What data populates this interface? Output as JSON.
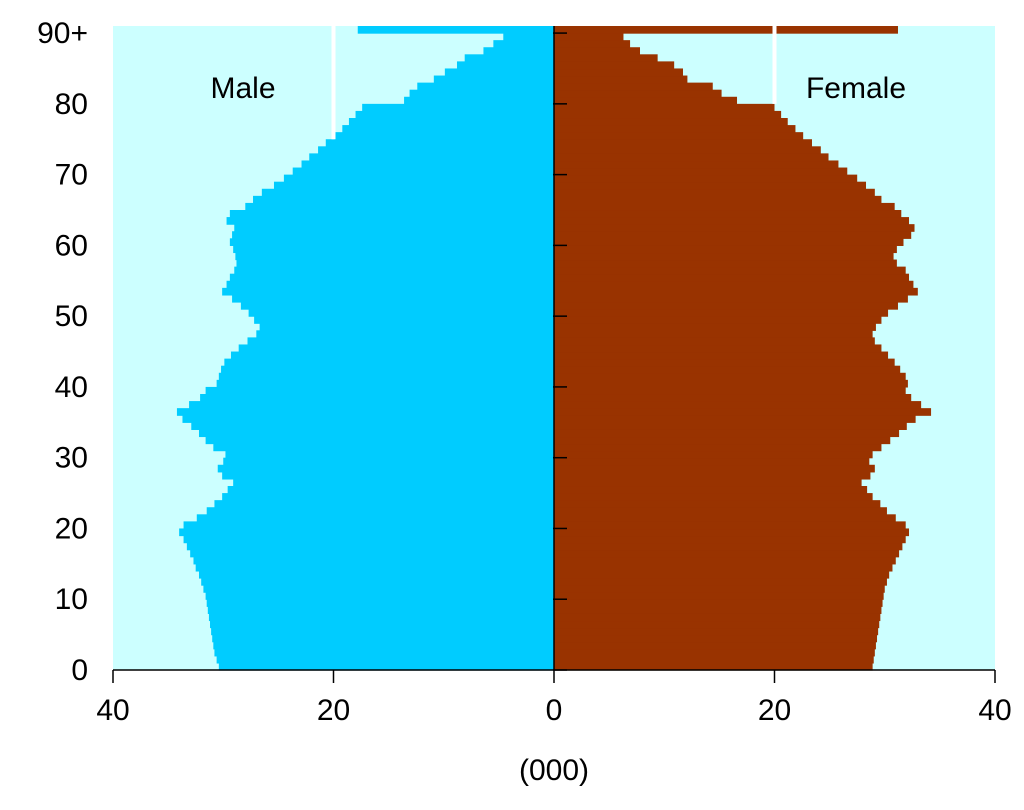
{
  "chart_data": {
    "type": "bar",
    "orientation": "horizontal-pyramid",
    "xlabel": "(000)",
    "x_tick_labels": [
      "40",
      "20",
      "0",
      "20",
      "40"
    ],
    "x_tick_values": [
      -40,
      -20,
      0,
      20,
      40
    ],
    "y_tick_labels": [
      "0",
      "10",
      "20",
      "30",
      "40",
      "50",
      "60",
      "70",
      "80",
      "90+"
    ],
    "y_tick_values": [
      0,
      10,
      20,
      30,
      40,
      50,
      60,
      70,
      80,
      90
    ],
    "xlim": [
      -40,
      40
    ],
    "ylim": [
      0,
      91
    ],
    "grid": false,
    "reference_lines": [
      -20,
      20
    ],
    "categories": [
      "0",
      "1",
      "2",
      "3",
      "4",
      "5",
      "6",
      "7",
      "8",
      "9",
      "10",
      "11",
      "12",
      "13",
      "14",
      "15",
      "16",
      "17",
      "18",
      "19",
      "20",
      "21",
      "22",
      "23",
      "24",
      "25",
      "26",
      "27",
      "28",
      "29",
      "30",
      "31",
      "32",
      "33",
      "34",
      "35",
      "36",
      "37",
      "38",
      "39",
      "40",
      "41",
      "42",
      "43",
      "44",
      "45",
      "46",
      "47",
      "48",
      "49",
      "50",
      "51",
      "52",
      "53",
      "54",
      "55",
      "56",
      "57",
      "58",
      "59",
      "60",
      "61",
      "62",
      "63",
      "64",
      "65",
      "66",
      "67",
      "68",
      "69",
      "70",
      "71",
      "72",
      "73",
      "74",
      "75",
      "76",
      "77",
      "78",
      "79",
      "80",
      "81",
      "82",
      "83",
      "84",
      "85",
      "86",
      "87",
      "88",
      "89",
      "90+"
    ],
    "series": [
      {
        "name": "Male",
        "values": [
          30.4,
          30.6,
          30.8,
          30.9,
          31.0,
          31.1,
          31.2,
          31.3,
          31.4,
          31.5,
          31.6,
          31.8,
          32.0,
          32.2,
          32.5,
          32.7,
          33.0,
          33.3,
          33.6,
          34.0,
          33.6,
          32.4,
          31.5,
          30.8,
          30.1,
          29.6,
          29.1,
          30.1,
          30.5,
          30.0,
          29.8,
          30.9,
          31.6,
          32.2,
          32.9,
          33.7,
          34.2,
          33.1,
          32.1,
          31.6,
          30.6,
          30.4,
          30.2,
          29.9,
          29.3,
          28.6,
          27.8,
          27.0,
          26.7,
          27.2,
          27.7,
          28.4,
          29.2,
          30.1,
          29.7,
          29.4,
          29.0,
          28.8,
          28.9,
          29.1,
          29.4,
          29.2,
          29.0,
          29.7,
          29.4,
          28.0,
          27.3,
          26.5,
          25.4,
          24.5,
          23.7,
          22.9,
          22.2,
          21.4,
          20.7,
          19.9,
          19.2,
          18.6,
          18.0,
          17.4,
          13.6,
          13.1,
          12.4,
          10.9,
          9.9,
          8.8,
          8.1,
          6.4,
          5.5,
          4.6,
          17.8
        ]
      },
      {
        "name": "Female",
        "values": [
          28.9,
          29.0,
          29.1,
          29.2,
          29.3,
          29.4,
          29.5,
          29.6,
          29.7,
          29.8,
          29.9,
          30.0,
          30.2,
          30.4,
          30.7,
          31.0,
          31.3,
          31.6,
          31.9,
          32.2,
          31.9,
          31.0,
          30.2,
          29.6,
          28.9,
          28.4,
          27.9,
          28.7,
          29.1,
          28.6,
          28.9,
          29.7,
          30.5,
          31.3,
          32.0,
          32.8,
          34.2,
          33.3,
          32.4,
          31.9,
          32.1,
          31.9,
          31.4,
          30.9,
          30.3,
          29.7,
          29.1,
          28.9,
          29.2,
          29.7,
          30.3,
          31.2,
          32.1,
          33.0,
          32.6,
          32.2,
          31.9,
          31.1,
          30.8,
          31.1,
          31.7,
          32.4,
          32.7,
          32.2,
          31.5,
          30.9,
          29.7,
          29.1,
          28.3,
          27.5,
          26.6,
          25.8,
          24.9,
          24.2,
          23.4,
          22.6,
          21.9,
          21.2,
          20.6,
          20.0,
          16.6,
          15.2,
          14.4,
          12.1,
          11.7,
          10.9,
          9.4,
          7.8,
          6.9,
          6.3,
          31.2
        ]
      }
    ],
    "colors": {
      "male_bar": "#00CCFF",
      "female_bar": "#993300",
      "plot_background": "#CCFFFF",
      "axis": "#000000",
      "reference_line": "#FFFFFF"
    }
  }
}
